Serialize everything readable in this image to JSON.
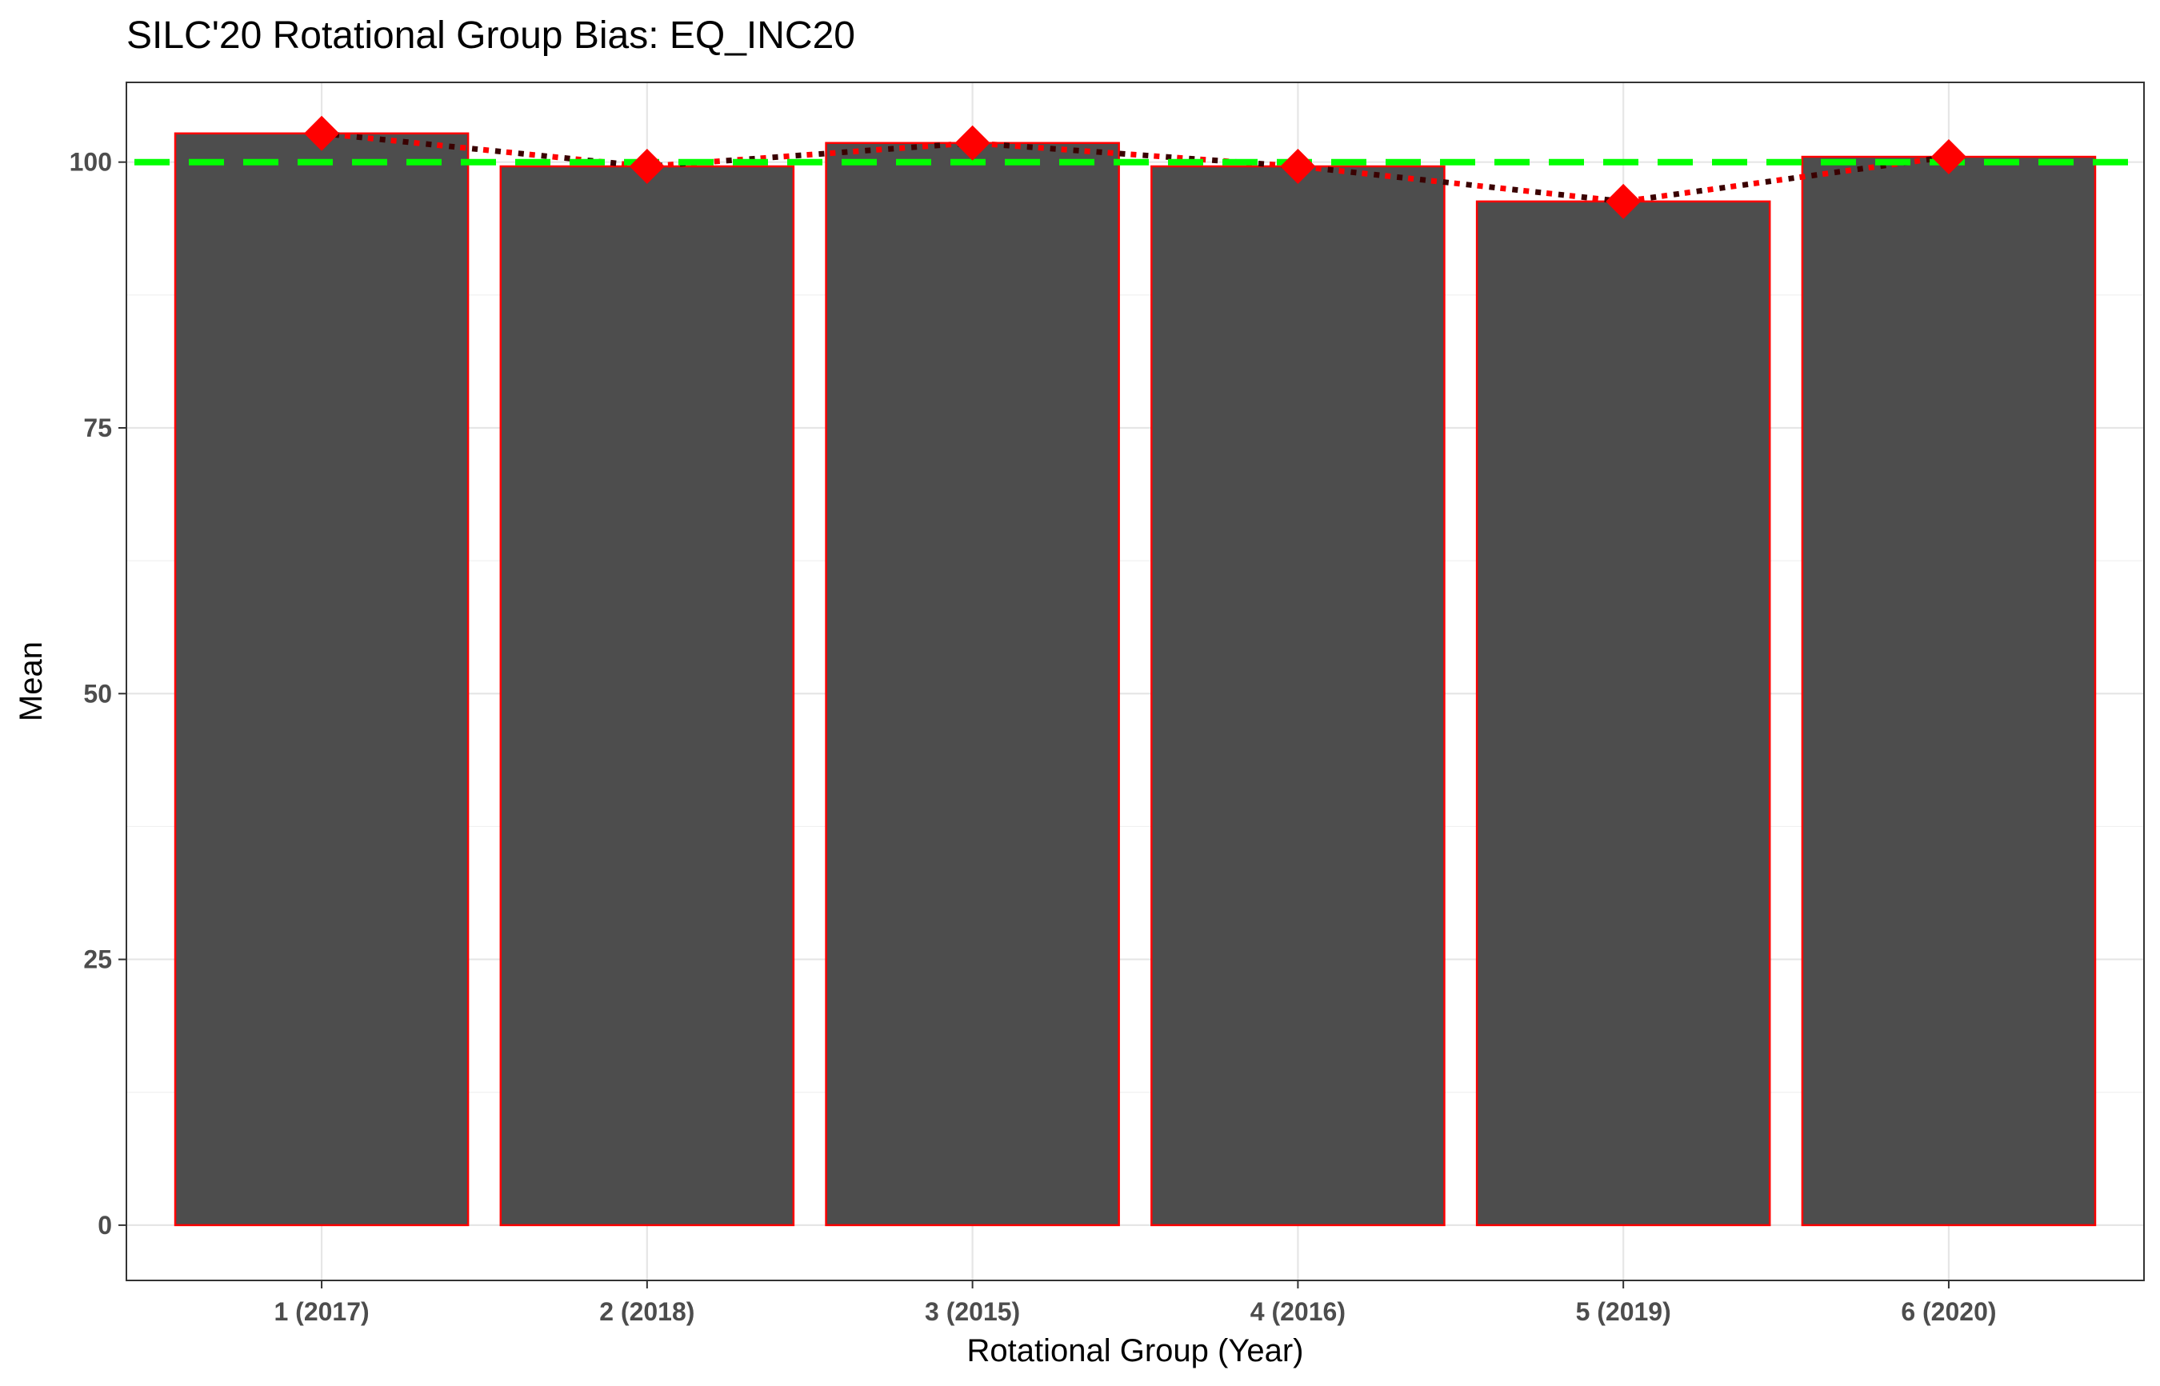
{
  "chart_data": {
    "type": "bar",
    "title": "SILC'20 Rotational Group Bias: EQ_INC20",
    "xlabel": "Rotational Group (Year)",
    "ylabel": "Mean",
    "categories": [
      "1 (2017)",
      "2 (2018)",
      "3 (2015)",
      "4 (2016)",
      "5 (2019)",
      "6 (2020)"
    ],
    "values": [
      102.7,
      99.6,
      101.8,
      99.6,
      96.3,
      100.5
    ],
    "ylim": [
      -5.2,
      107.5
    ],
    "yticks": [
      0,
      25,
      50,
      75,
      100
    ],
    "reference_line": {
      "value": 100,
      "style": "dashed",
      "color": "#00ff00"
    },
    "trend_line": {
      "style": "dotted",
      "color": "#ff0000",
      "shadow_color": "#3a0000"
    },
    "markers": {
      "shape": "diamond",
      "color": "#ff0000"
    },
    "bar_fill": "#4d4d4d",
    "bar_outline": "#ff0000",
    "grid": true,
    "panel_border": "#333333",
    "legend": "none"
  }
}
